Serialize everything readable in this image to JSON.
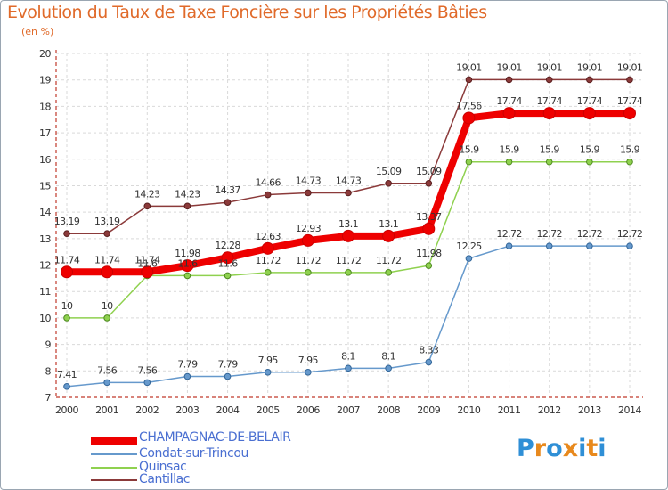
{
  "title": "Evolution du Taux de Taxe Foncière sur les Propriétés Bâties",
  "unit_label": "(en %)",
  "colors": {
    "title": "#e06a2a",
    "axis": "#c0392b",
    "grid": "#d9d9d9",
    "legend_text": "#4a6fd1"
  },
  "logo": {
    "letters": [
      "P",
      "r",
      "o",
      "x",
      "i",
      "t",
      "i"
    ],
    "colors": [
      "#2f8fd6",
      "#e8891d",
      "#2f8fd6",
      "#e8891d",
      "#2f8fd6",
      "#e8891d",
      "#2f8fd6"
    ]
  },
  "chart_data": {
    "type": "line",
    "x": [
      2000,
      2001,
      2002,
      2003,
      2004,
      2005,
      2006,
      2007,
      2008,
      2009,
      2010,
      2011,
      2012,
      2013,
      2014
    ],
    "x_tick_labels": [
      "2000",
      "2001",
      "2002",
      "2003",
      "2004",
      "2005",
      "2006",
      "2007",
      "2008",
      "2009",
      "2010",
      "2011",
      "2012",
      "2013",
      "2014"
    ],
    "ylim": [
      7,
      20
    ],
    "y_ticks": [
      7,
      8,
      9,
      10,
      11,
      12,
      13,
      14,
      15,
      16,
      17,
      18,
      19,
      20
    ],
    "y_tick_labels": [
      "7",
      "8",
      "9",
      "10",
      "11",
      "12",
      "13",
      "14",
      "15",
      "16",
      "17",
      "18",
      "19",
      "20"
    ],
    "grid": true,
    "legend_position": "bottom-left",
    "series": [
      {
        "name": "CHAMPAGNAC-DE-BELAIR",
        "color": "#ee0000",
        "values": [
          11.74,
          11.74,
          11.74,
          11.98,
          12.28,
          12.63,
          12.93,
          13.1,
          13.1,
          13.37,
          17.56,
          17.74,
          17.74,
          17.74,
          17.74
        ],
        "labels": [
          "11.74",
          "11.74",
          "11.74",
          "11.98",
          "12.28",
          "12.63",
          "12.93",
          "13.1",
          "13.1",
          "13.37",
          "17.56",
          "17.74",
          "17.74",
          "17.74",
          "17.74"
        ]
      },
      {
        "name": "Condat-sur-Trincou",
        "color": "#6699cc",
        "values": [
          7.41,
          7.56,
          7.56,
          7.79,
          7.79,
          7.95,
          7.95,
          8.1,
          8.1,
          8.33,
          12.25,
          12.72,
          12.72,
          12.72,
          12.72
        ],
        "labels": [
          "7.41",
          "7.56",
          "7.56",
          "7.79",
          "7.79",
          "7.95",
          "7.95",
          "8.1",
          "8.1",
          "8.33",
          "12.25",
          "12.72",
          "12.72",
          "12.72",
          "12.72"
        ]
      },
      {
        "name": "Quinsac",
        "color": "#8fd14f",
        "values": [
          10,
          10,
          11.6,
          11.6,
          11.6,
          11.72,
          11.72,
          11.72,
          11.72,
          11.98,
          15.9,
          15.9,
          15.9,
          15.9,
          15.9
        ],
        "labels": [
          "10",
          "10",
          "11.6",
          "11.6",
          "11.6",
          "11.72",
          "11.72",
          "11.72",
          "11.72",
          "11.98",
          "15.9",
          "15.9",
          "15.9",
          "15.9",
          "15.9"
        ]
      },
      {
        "name": "Cantillac",
        "color": "#8b3a3a",
        "values": [
          13.19,
          13.19,
          14.23,
          14.23,
          14.37,
          14.66,
          14.73,
          14.73,
          15.09,
          15.09,
          19.01,
          19.01,
          19.01,
          19.01,
          19.01
        ],
        "labels": [
          "13.19",
          "13.19",
          "14.23",
          "14.23",
          "14.37",
          "14.66",
          "14.73",
          "14.73",
          "15.09",
          "15.09",
          "19.01",
          "19.01",
          "19.01",
          "19.01",
          "19.01"
        ]
      }
    ]
  }
}
